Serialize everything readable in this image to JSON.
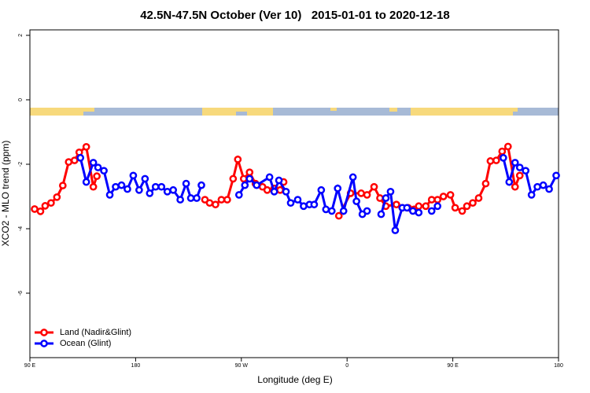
{
  "chart_data": {
    "type": "line",
    "title": "42.5N-47.5N October (Ver 10)   2015-01-01 to 2020-12-18",
    "x_label": "Longitude (deg E)",
    "y_label": "XCO2 - MLO trend (ppm)",
    "xlim": [
      90,
      540
    ],
    "ylim": [
      -8,
      2.17
    ],
    "xticks": [
      {
        "value": 90,
        "label": "90 E"
      },
      {
        "value": 180,
        "label": "180"
      },
      {
        "value": 270,
        "label": "90 W"
      },
      {
        "value": 360,
        "label": "0"
      },
      {
        "value": 450,
        "label": "90 E"
      },
      {
        "value": 540,
        "label": "180"
      }
    ],
    "yticks": [
      2,
      0,
      -2,
      -4,
      -6
    ],
    "legend": "bottomleft",
    "series": [
      {
        "name": "Land (Nadir&Glint)",
        "color": "#ff0000",
        "x": [
          94,
          99,
          103,
          108,
          113,
          118,
          123,
          128,
          132,
          138,
          144,
          147,
          null,
          239,
          243,
          248,
          253,
          258,
          263,
          267,
          272,
          277,
          282,
          288,
          292,
          298,
          303,
          306,
          null,
          353,
          363,
          372,
          377,
          383,
          388,
          393,
          402,
          407,
          412,
          417,
          421,
          427,
          432,
          437,
          442,
          448,
          452,
          458,
          462,
          467,
          472,
          478,
          482,
          487,
          492,
          497,
          503,
          507
        ],
        "values": [
          -3.39,
          -3.46,
          -3.29,
          -3.2,
          -3.02,
          -2.66,
          -1.93,
          -1.88,
          -1.63,
          -1.46,
          -2.7,
          -2.37,
          null,
          -3.1,
          -3.2,
          -3.25,
          -3.1,
          -3.1,
          -2.45,
          -1.85,
          -2.45,
          -2.25,
          -2.6,
          -2.7,
          -2.8,
          -2.75,
          -2.8,
          -2.55,
          null,
          -3.6,
          -2.9,
          -2.9,
          -2.95,
          -2.7,
          -3.05,
          -3.3,
          -3.25,
          -3.35,
          -3.35,
          -3.4,
          -3.3,
          -3.3,
          -3.1,
          -3.1,
          -3.0,
          -2.95,
          -3.35,
          -3.45,
          -3.3,
          -3.2,
          -3.05,
          -2.6,
          -1.9,
          -1.88,
          -1.6,
          -1.45,
          -2.7,
          -2.35
        ]
      },
      {
        "name": "Ocean (Glint)",
        "color": "#0000ff",
        "x": [
          133,
          138,
          144,
          148,
          153,
          158,
          163,
          168,
          173,
          178,
          183,
          188,
          192,
          197,
          202,
          207,
          212,
          218,
          223,
          227,
          232,
          236,
          null,
          268,
          273,
          277,
          283,
          294,
          298,
          302,
          308,
          312,
          318,
          323,
          328,
          332,
          338,
          342,
          347,
          352,
          357,
          365,
          368,
          373,
          377,
          null,
          389,
          393,
          397,
          401,
          407,
          411,
          416,
          421,
          null,
          432,
          437,
          null,
          493,
          498,
          503,
          507,
          512,
          517,
          522,
          527,
          532,
          538
        ],
        "values": [
          -1.8,
          -2.55,
          -1.95,
          -2.1,
          -2.2,
          -2.95,
          -2.7,
          -2.65,
          -2.77,
          -2.35,
          -2.8,
          -2.45,
          -2.9,
          -2.7,
          -2.7,
          -2.85,
          -2.8,
          -3.1,
          -2.6,
          -3.05,
          -3.05,
          -2.65,
          null,
          -2.95,
          -2.65,
          -2.45,
          -2.65,
          -2.4,
          -2.85,
          -2.5,
          -2.85,
          -3.2,
          -3.1,
          -3.3,
          -3.25,
          -3.25,
          -2.8,
          -3.4,
          -3.45,
          -2.75,
          -3.45,
          -2.4,
          -3.15,
          -3.55,
          -3.45,
          null,
          -3.55,
          -3.05,
          -2.85,
          -4.05,
          -3.35,
          -3.35,
          -3.45,
          -3.5,
          null,
          -3.45,
          -3.3,
          null,
          -1.8,
          -2.55,
          -1.95,
          -2.1,
          -2.2,
          -2.95,
          -2.7,
          -2.65,
          -2.77,
          -2.35
        ]
      }
    ]
  }
}
